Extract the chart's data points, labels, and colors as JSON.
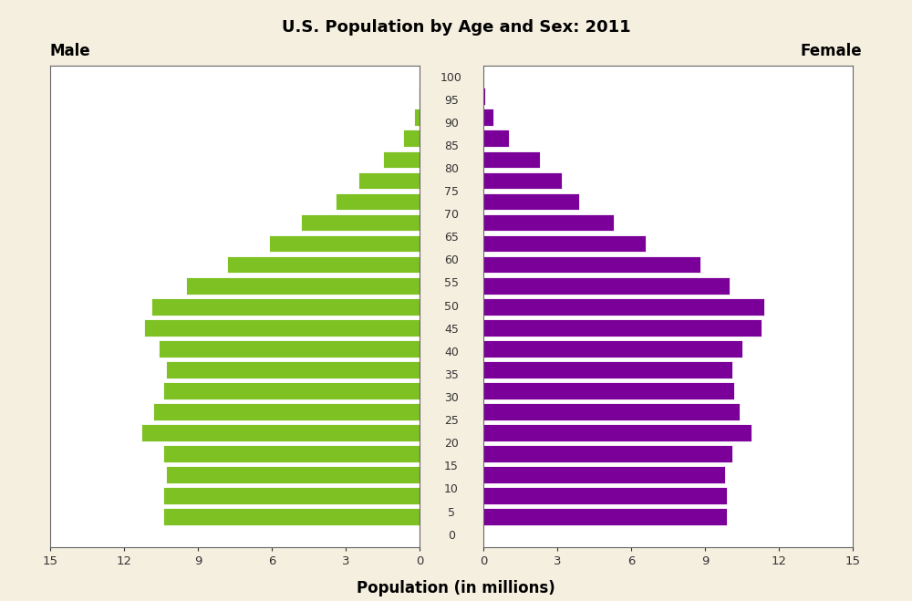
{
  "title": "U.S. Population by Age and Sex: 2011",
  "xlabel": "Population (in millions)",
  "male_label": "Male",
  "female_label": "Female",
  "background_color": "#f5efe0",
  "plot_bg_color": "#ffffff",
  "male_color": "#7dc122",
  "female_color": "#7b0099",
  "age_groups": [
    0,
    5,
    10,
    15,
    20,
    25,
    30,
    35,
    40,
    45,
    50,
    55,
    60,
    65,
    70,
    75,
    80,
    85,
    90,
    95,
    100
  ],
  "male_values": [
    10.4,
    10.4,
    10.3,
    10.4,
    11.3,
    10.8,
    10.4,
    10.3,
    10.6,
    11.2,
    10.9,
    9.5,
    7.8,
    6.1,
    4.8,
    3.4,
    2.5,
    1.5,
    0.65,
    0.22,
    0.04
  ],
  "female_values": [
    9.9,
    9.9,
    9.8,
    10.1,
    10.9,
    10.4,
    10.2,
    10.1,
    10.5,
    11.3,
    11.4,
    10.0,
    8.8,
    6.6,
    5.3,
    3.9,
    3.2,
    2.3,
    1.05,
    0.4,
    0.09
  ],
  "xlim": 15,
  "xticks": [
    0,
    3,
    6,
    9,
    12,
    15
  ],
  "bar_height": 0.82,
  "spine_color": "#666666",
  "tick_color": "#333333",
  "tick_fontsize": 9.5,
  "label_fontsize": 9.0
}
